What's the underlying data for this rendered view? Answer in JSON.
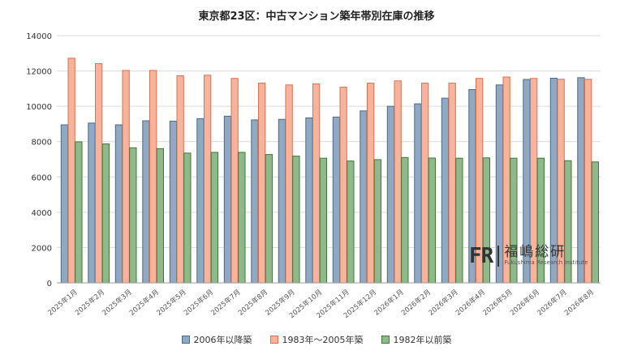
{
  "chart_data": {
    "type": "bar",
    "title": "東京都23区：中古マンション築年帯別在庫の推移",
    "xlabel": "",
    "ylabel": "",
    "ylim": [
      0,
      14000
    ],
    "yticks": [
      0,
      2000,
      4000,
      6000,
      8000,
      10000,
      12000,
      14000
    ],
    "grid": true,
    "legend_position": "bottom",
    "categories": [
      "2025年1月",
      "2025年2月",
      "2025年3月",
      "2025年4月",
      "2025年5月",
      "2025年6月",
      "2025年7月",
      "2025年8月",
      "2025年9月",
      "2025年10月",
      "2025年11月",
      "2025年12月",
      "2026年1月",
      "2026年2月",
      "2026年3月",
      "2026年4月",
      "2026年5月",
      "2026年6月",
      "2026年7月",
      "2026年8月"
    ],
    "series": [
      {
        "name": "2006年以降築",
        "color": "#8ea9c1",
        "edge": "#4a6a88",
        "values": [
          8950,
          9050,
          8950,
          9180,
          9160,
          9300,
          9440,
          9230,
          9260,
          9340,
          9390,
          9740,
          10000,
          10140,
          10460,
          10950,
          11210,
          11520,
          11590,
          11620
        ]
      },
      {
        "name": "1983年〜2005年築",
        "color": "#f7b39b",
        "edge": "#d9714f",
        "values": [
          12720,
          12420,
          12030,
          12030,
          11730,
          11760,
          11580,
          11310,
          11210,
          11270,
          11080,
          11310,
          11440,
          11310,
          11310,
          11580,
          11660,
          11580,
          11530,
          11530
        ]
      },
      {
        "name": "1982年以前築",
        "color": "#8fb98a",
        "edge": "#3d7a3a",
        "values": [
          7990,
          7870,
          7650,
          7600,
          7350,
          7390,
          7390,
          7270,
          7180,
          7060,
          6900,
          6980,
          7100,
          7070,
          7060,
          7080,
          7060,
          7060,
          6920,
          6850
        ]
      }
    ]
  },
  "watermark": {
    "logo": "FR",
    "name": "福嶋総研",
    "sub": "Fukushima Research Institute"
  }
}
